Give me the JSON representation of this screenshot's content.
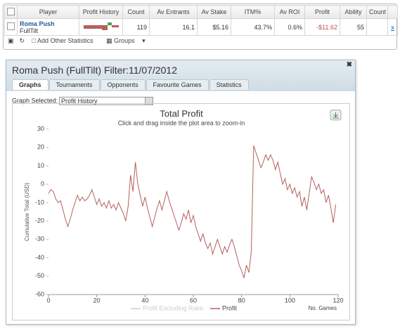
{
  "table": {
    "headers": [
      "Player",
      "Profit History",
      "Count",
      "Av Entrants",
      "Av Stake",
      "ITM%",
      "Av ROI",
      "Profit",
      "Ability",
      "Count"
    ],
    "rows": [
      {
        "player": "Roma Push",
        "site": "FullTilt",
        "cells": [
          "119",
          "16.1",
          "$5.16",
          "43.7%",
          "0.6%",
          "-$11.62",
          "55"
        ],
        "action": "x"
      }
    ]
  },
  "toolbar": {
    "add_statistics": "Add Other Statistics",
    "groups": "Groups"
  },
  "window": {
    "title": "Roma Push (FullTilt) Filter:11/07/2012",
    "tabs": [
      "Graphs",
      "Tournaments",
      "Opponents",
      "Favourite Games",
      "Statistics"
    ],
    "graph_selected_label": "Graph Selected:",
    "graph_selected": "Profit History"
  },
  "chart_data": {
    "type": "line",
    "title": "Total Profit",
    "subtitle": "Click and drag inside the plot area to zoom-in",
    "y_label": "Cumulative Total (USD)",
    "x_label": "No. Games",
    "xlim": [
      0,
      120
    ],
    "xticks": [
      0,
      20,
      40,
      60,
      80,
      100,
      120
    ],
    "ylim": [
      -60,
      30
    ],
    "yticks": [
      -60,
      -50,
      -40,
      -30,
      -20,
      -10,
      0,
      10,
      20,
      30
    ],
    "series": [
      {
        "name": "Profit Excluding Rake",
        "color": "#cccccc",
        "hidden": true
      },
      {
        "name": "Profit",
        "color": "#b5605b",
        "values": [
          -5,
          -3,
          -4,
          -8,
          -10,
          -9,
          -14,
          -19,
          -23,
          -19,
          -14,
          -10,
          -6,
          -9,
          -7,
          -9,
          -8,
          -6,
          -3,
          -7,
          -11,
          -8,
          -12,
          -10,
          -13,
          -9,
          -13,
          -11,
          -14,
          -10,
          -13,
          -16,
          -20,
          -12,
          5,
          -4,
          12,
          0,
          -6,
          -12,
          -7,
          -13,
          -18,
          -23,
          -18,
          -13,
          -9,
          -14,
          -9,
          -4,
          -9,
          -13,
          -17,
          -21,
          -25,
          -21,
          -16,
          -19,
          -14,
          -21,
          -17,
          -23,
          -27,
          -31,
          -27,
          -32,
          -35,
          -32,
          -38,
          -34,
          -30,
          -34,
          -38,
          -34,
          -37,
          -33,
          -30,
          -34,
          -39,
          -44,
          -47,
          -51,
          -44,
          -48,
          -37,
          21,
          17,
          13,
          9,
          12,
          16,
          13,
          16,
          13,
          8,
          12,
          6,
          0,
          3,
          -3,
          0,
          -5,
          -2,
          -7,
          -4,
          -12,
          -7,
          -14,
          -5,
          4,
          1,
          -3,
          0,
          -5,
          -3,
          -10,
          -6,
          -13,
          -21,
          -11
        ]
      }
    ]
  }
}
